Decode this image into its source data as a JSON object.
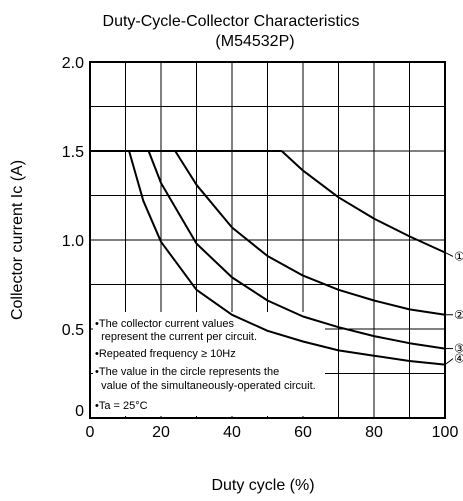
{
  "chart_data": {
    "type": "line",
    "title": "Duty-Cycle-Collector Characteristics",
    "subtitle": "(M54532P)",
    "xlabel": "Duty cycle  (%)",
    "ylabel": "Collector current  Ic (A)",
    "xlim": [
      0,
      100
    ],
    "ylim": [
      0,
      2.0
    ],
    "x_ticks": [
      0,
      20,
      40,
      60,
      80,
      100
    ],
    "x_tick_labels": [
      "0",
      "20",
      "40",
      "60",
      "80",
      "100"
    ],
    "y_ticks": [
      0,
      0.5,
      1.0,
      1.5,
      2.0
    ],
    "y_tick_labels": [
      "0",
      "0.5",
      "1.0",
      "1.5",
      "2.0"
    ],
    "grid": true,
    "series": [
      {
        "name": "①",
        "x": [
          0,
          54,
          60,
          70,
          80,
          90,
          100
        ],
        "y": [
          1.5,
          1.5,
          1.39,
          1.24,
          1.12,
          1.02,
          0.93
        ]
      },
      {
        "name": "②",
        "x": [
          0,
          24,
          30,
          40,
          50,
          60,
          70,
          80,
          90,
          100
        ],
        "y": [
          1.5,
          1.5,
          1.31,
          1.07,
          0.91,
          0.8,
          0.72,
          0.66,
          0.61,
          0.58
        ]
      },
      {
        "name": "③",
        "x": [
          0,
          16.5,
          20,
          30,
          40,
          50,
          60,
          70,
          80,
          90,
          100
        ],
        "y": [
          1.5,
          1.5,
          1.32,
          0.98,
          0.79,
          0.66,
          0.57,
          0.51,
          0.46,
          0.42,
          0.39
        ]
      },
      {
        "name": "④",
        "x": [
          0,
          11,
          15,
          20,
          30,
          40,
          50,
          60,
          70,
          80,
          90,
          100
        ],
        "y": [
          1.5,
          1.5,
          1.22,
          0.99,
          0.72,
          0.58,
          0.49,
          0.43,
          0.38,
          0.35,
          0.32,
          0.3
        ]
      }
    ],
    "annotations": [
      "•The collector current values",
      "  represent the current per circuit.",
      "•Repeated frequency ≥ 10Hz",
      "•The value in the circle represents the",
      "  value of the simultaneously-operated circuit.",
      "•Ta = 25°C"
    ]
  }
}
